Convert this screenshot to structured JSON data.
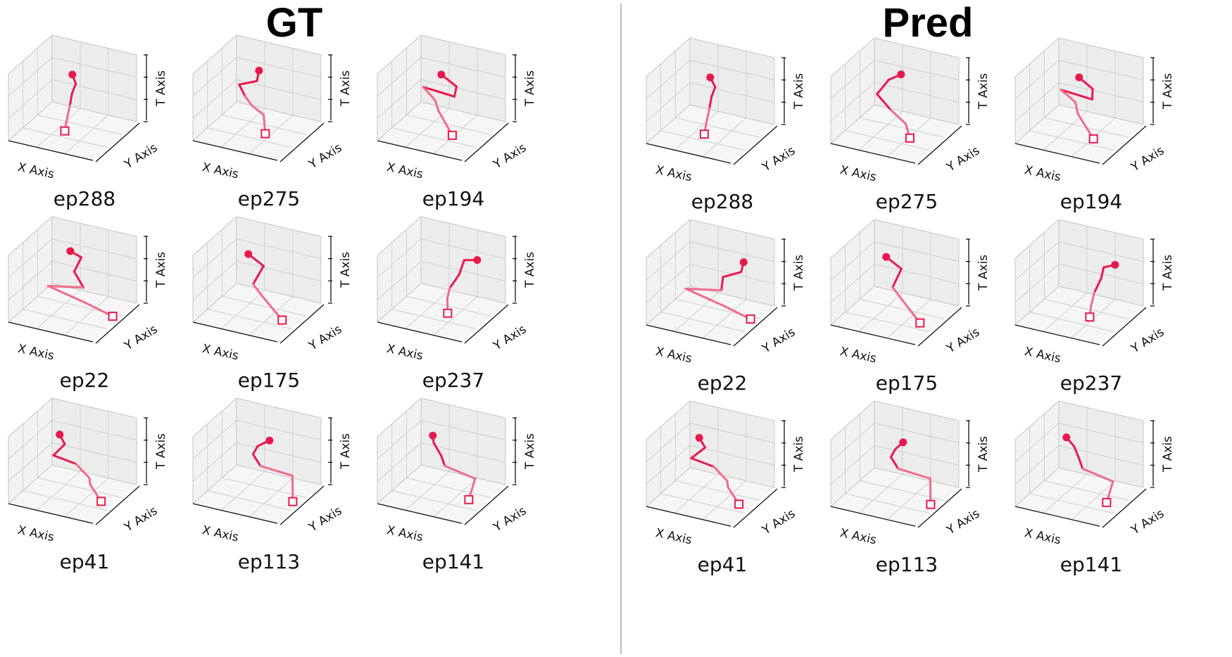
{
  "panels": [
    {
      "title": "GT",
      "episodes": [
        "ep288",
        "ep275",
        "ep194",
        "ep22",
        "ep175",
        "ep237",
        "ep41",
        "ep113",
        "ep141"
      ]
    },
    {
      "title": "Pred",
      "episodes": [
        "ep288",
        "ep275",
        "ep194",
        "ep22",
        "ep175",
        "ep237",
        "ep41",
        "ep113",
        "ep141"
      ]
    }
  ],
  "axis_labels": {
    "x": "X Axis",
    "y": "Y Axis",
    "t": "T Axis"
  },
  "colors": {
    "trajectory": "#e8194a",
    "trajectory_light": "#f06b8a",
    "pane": "#f2f2f2",
    "grid": "#cfcfcf",
    "divider": "#bbbbbb"
  },
  "chart_data": {
    "type": "line",
    "description_markers": {
      "start": "filled-circle",
      "end": "open-square"
    },
    "panels": {
      "GT": [
        {
          "episode": "ep288",
          "points": [
            [
              0.55,
              0.4,
              0.92
            ],
            [
              0.58,
              0.42,
              0.78
            ],
            [
              0.52,
              0.45,
              0.6
            ],
            [
              0.5,
              0.44,
              0.42
            ],
            [
              0.48,
              0.42,
              0.25
            ],
            [
              0.46,
              0.4,
              0.05
            ]
          ]
        },
        {
          "episode": "ep275",
          "points": [
            [
              0.55,
              0.45,
              0.95
            ],
            [
              0.52,
              0.46,
              0.78
            ],
            [
              0.3,
              0.48,
              0.65
            ],
            [
              0.36,
              0.5,
              0.48
            ],
            [
              0.45,
              0.48,
              0.38
            ],
            [
              0.6,
              0.46,
              0.3
            ],
            [
              0.64,
              0.42,
              0.05
            ]
          ]
        },
        {
          "episode": "ep194",
          "points": [
            [
              0.55,
              0.4,
              0.92
            ],
            [
              0.72,
              0.42,
              0.78
            ],
            [
              0.68,
              0.45,
              0.6
            ],
            [
              0.3,
              0.47,
              0.62
            ],
            [
              0.45,
              0.45,
              0.48
            ],
            [
              0.5,
              0.43,
              0.35
            ],
            [
              0.68,
              0.4,
              0.05
            ]
          ]
        },
        {
          "episode": "ep22",
          "points": [
            [
              0.5,
              0.45,
              0.95
            ],
            [
              0.62,
              0.47,
              0.88
            ],
            [
              0.52,
              0.5,
              0.62
            ],
            [
              0.62,
              0.52,
              0.4
            ],
            [
              0.2,
              0.52,
              0.3
            ],
            [
              0.6,
              0.6,
              0.12
            ],
            [
              0.95,
              0.55,
              0.05
            ]
          ]
        },
        {
          "episode": "ep175",
          "points": [
            [
              0.45,
              0.4,
              0.92
            ],
            [
              0.62,
              0.42,
              0.78
            ],
            [
              0.48,
              0.45,
              0.45
            ],
            [
              0.58,
              0.46,
              0.3
            ],
            [
              0.85,
              0.4,
              0.05
            ]
          ]
        },
        {
          "episode": "ep237",
          "points": [
            [
              0.95,
              0.45,
              0.95
            ],
            [
              0.78,
              0.48,
              0.88
            ],
            [
              0.7,
              0.52,
              0.62
            ],
            [
              0.6,
              0.5,
              0.4
            ],
            [
              0.58,
              0.48,
              0.25
            ],
            [
              0.6,
              0.45,
              0.05
            ]
          ]
        },
        {
          "episode": "ep41",
          "points": [
            [
              0.4,
              0.4,
              0.92
            ],
            [
              0.45,
              0.42,
              0.78
            ],
            [
              0.3,
              0.45,
              0.55
            ],
            [
              0.55,
              0.48,
              0.48
            ],
            [
              0.7,
              0.5,
              0.3
            ],
            [
              0.72,
              0.48,
              0.22
            ],
            [
              0.88,
              0.42,
              0.05
            ]
          ]
        },
        {
          "episode": "ep113",
          "points": [
            [
              0.7,
              0.4,
              0.92
            ],
            [
              0.55,
              0.42,
              0.78
            ],
            [
              0.48,
              0.45,
              0.62
            ],
            [
              0.55,
              0.48,
              0.45
            ],
            [
              0.92,
              0.5,
              0.4
            ],
            [
              0.95,
              0.45,
              0.05
            ]
          ]
        },
        {
          "episode": "ep141",
          "points": [
            [
              0.45,
              0.4,
              0.92
            ],
            [
              0.45,
              0.42,
              0.8
            ],
            [
              0.52,
              0.46,
              0.6
            ],
            [
              0.55,
              0.48,
              0.45
            ],
            [
              0.9,
              0.5,
              0.35
            ],
            [
              0.85,
              0.45,
              0.05
            ]
          ]
        }
      ],
      "Pred": [
        {
          "episode": "ep288",
          "points": [
            [
              0.55,
              0.4,
              0.92
            ],
            [
              0.6,
              0.42,
              0.78
            ],
            [
              0.54,
              0.45,
              0.6
            ],
            [
              0.52,
              0.44,
              0.42
            ],
            [
              0.5,
              0.42,
              0.25
            ],
            [
              0.48,
              0.4,
              0.05
            ]
          ]
        },
        {
          "episode": "ep275",
          "points": [
            [
              0.6,
              0.45,
              0.95
            ],
            [
              0.45,
              0.46,
              0.82
            ],
            [
              0.3,
              0.48,
              0.55
            ],
            [
              0.45,
              0.5,
              0.35
            ],
            [
              0.65,
              0.46,
              0.22
            ],
            [
              0.72,
              0.42,
              0.05
            ]
          ]
        },
        {
          "episode": "ep194",
          "points": [
            [
              0.55,
              0.4,
              0.92
            ],
            [
              0.7,
              0.42,
              0.78
            ],
            [
              0.68,
              0.45,
              0.6
            ],
            [
              0.3,
              0.47,
              0.62
            ],
            [
              0.48,
              0.45,
              0.5
            ],
            [
              0.52,
              0.43,
              0.35
            ],
            [
              0.72,
              0.4,
              0.05
            ]
          ]
        },
        {
          "episode": "ep22",
          "points": [
            [
              0.92,
              0.45,
              0.95
            ],
            [
              0.88,
              0.47,
              0.78
            ],
            [
              0.65,
              0.5,
              0.62
            ],
            [
              0.62,
              0.52,
              0.4
            ],
            [
              0.2,
              0.52,
              0.3
            ],
            [
              0.6,
              0.6,
              0.12
            ],
            [
              0.95,
              0.55,
              0.05
            ]
          ]
        },
        {
          "episode": "ep175",
          "points": [
            [
              0.45,
              0.4,
              0.92
            ],
            [
              0.62,
              0.42,
              0.78
            ],
            [
              0.5,
              0.45,
              0.45
            ],
            [
              0.6,
              0.46,
              0.3
            ],
            [
              0.85,
              0.4,
              0.05
            ]
          ]
        },
        {
          "episode": "ep237",
          "points": [
            [
              0.95,
              0.45,
              0.92
            ],
            [
              0.8,
              0.48,
              0.82
            ],
            [
              0.75,
              0.52,
              0.62
            ],
            [
              0.68,
              0.5,
              0.4
            ],
            [
              0.65,
              0.48,
              0.2
            ],
            [
              0.65,
              0.45,
              0.05
            ]
          ]
        },
        {
          "episode": "ep41",
          "points": [
            [
              0.42,
              0.4,
              0.92
            ],
            [
              0.48,
              0.42,
              0.78
            ],
            [
              0.3,
              0.45,
              0.55
            ],
            [
              0.55,
              0.48,
              0.48
            ],
            [
              0.7,
              0.5,
              0.3
            ],
            [
              0.72,
              0.48,
              0.22
            ],
            [
              0.88,
              0.42,
              0.05
            ]
          ]
        },
        {
          "episode": "ep113",
          "points": [
            [
              0.65,
              0.4,
              0.92
            ],
            [
              0.55,
              0.42,
              0.78
            ],
            [
              0.48,
              0.45,
              0.62
            ],
            [
              0.55,
              0.48,
              0.45
            ],
            [
              0.92,
              0.5,
              0.4
            ],
            [
              0.95,
              0.45,
              0.05
            ]
          ]
        },
        {
          "episode": "ep141",
          "points": [
            [
              0.4,
              0.4,
              0.92
            ],
            [
              0.48,
              0.42,
              0.8
            ],
            [
              0.52,
              0.46,
              0.6
            ],
            [
              0.55,
              0.48,
              0.45
            ],
            [
              0.9,
              0.5,
              0.35
            ],
            [
              0.85,
              0.45,
              0.05
            ]
          ]
        }
      ]
    }
  }
}
